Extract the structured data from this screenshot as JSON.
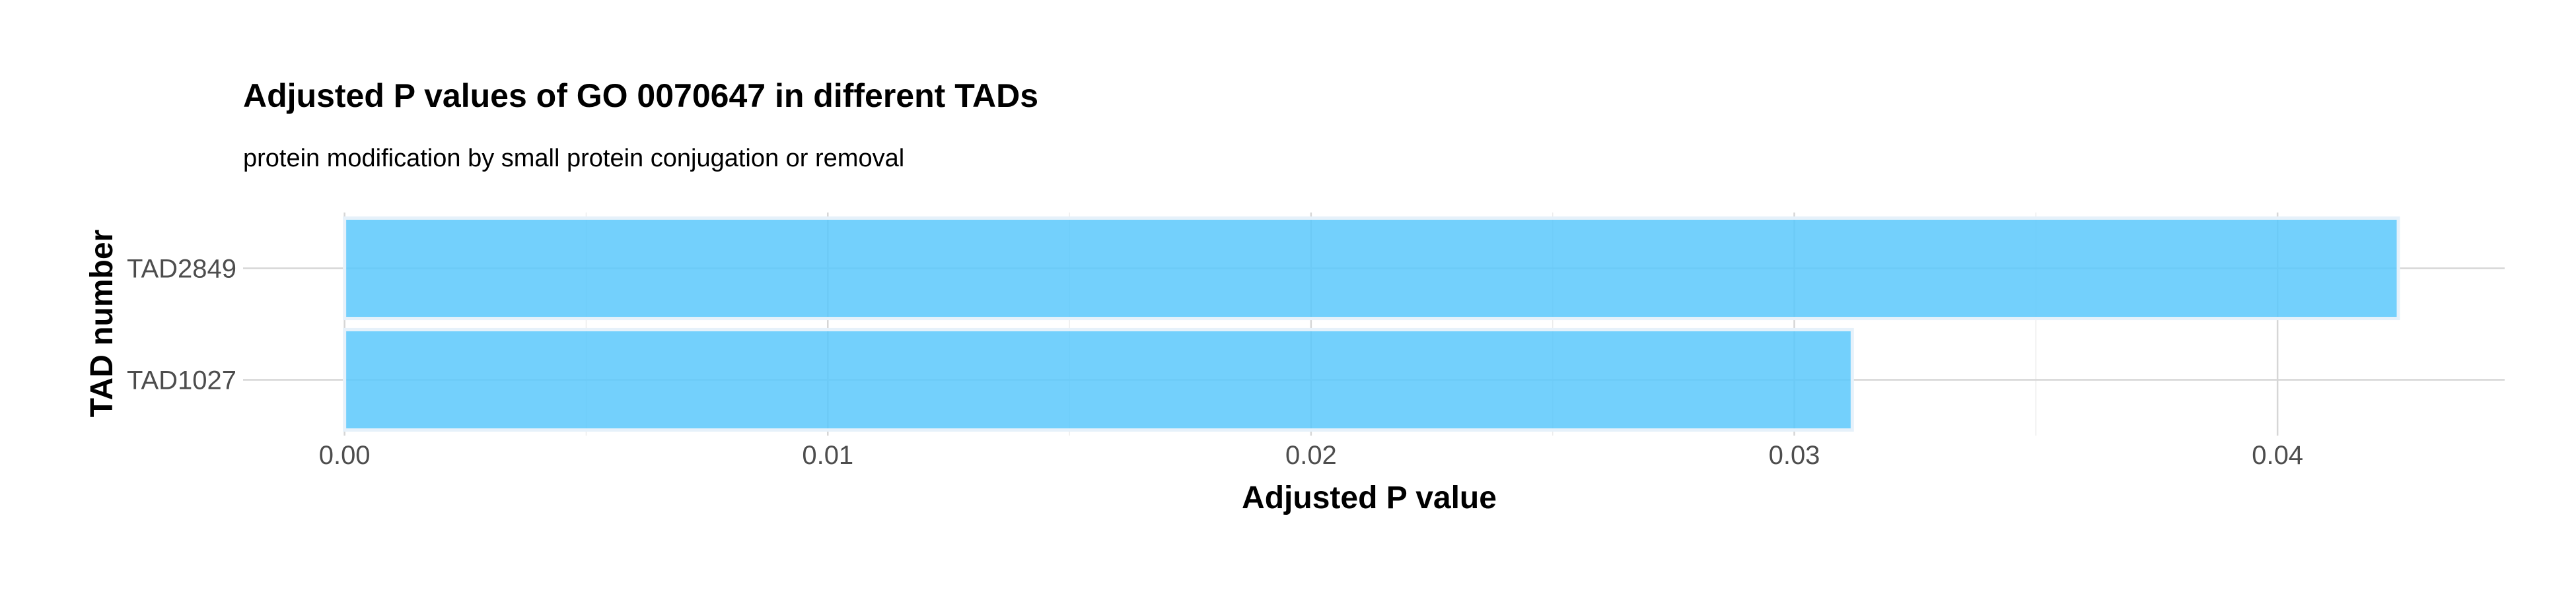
{
  "chart_data": {
    "type": "bar",
    "orientation": "horizontal",
    "title": "Adjusted P values of GO 0070647 in different TADs",
    "subtitle": "protein modification by small protein conjugation or removal",
    "xlabel": "Adjusted P value",
    "ylabel": "TAD number",
    "categories": [
      "TAD1027",
      "TAD2849"
    ],
    "values": [
      0.0312,
      0.0425
    ],
    "xlim": [
      -0.0021,
      0.0447
    ],
    "x_ticks": [
      0.0,
      0.01,
      0.02,
      0.03,
      0.04
    ],
    "x_tick_labels": [
      "0.00",
      "0.01",
      "0.02",
      "0.03",
      "0.04"
    ],
    "grid": true,
    "legend": "none",
    "colors": {
      "bar_fill": "#5bc8fb",
      "bar_outline": "#e6f1fa",
      "grid_major": "#d6d6d6",
      "grid_minor": "#ececec",
      "background": "#ffffff"
    }
  }
}
